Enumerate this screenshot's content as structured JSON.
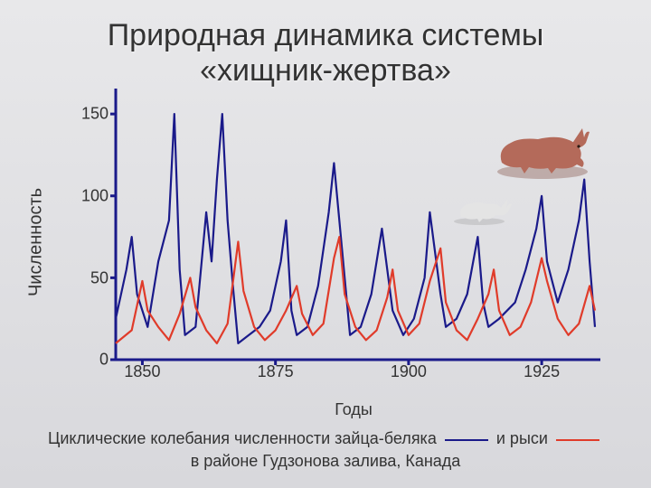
{
  "title_line1": "Природная динамика системы",
  "title_line2": "«хищник-жертва»",
  "ylabel": "Численность",
  "xlabel": "Годы",
  "background_gradient": [
    "#e8e8ea",
    "#d8d8dc"
  ],
  "chart": {
    "type": "line",
    "xlim": [
      1845,
      1935
    ],
    "ylim": [
      0,
      160
    ],
    "yticks": [
      0,
      50,
      100,
      150
    ],
    "xticks": [
      1850,
      1875,
      1900,
      1925
    ],
    "axis_color": "#1a1a8a",
    "axis_width": 3,
    "tick_len": 6,
    "prey": {
      "name": "заяц-беляк",
      "color": "#1a1a8a",
      "width": 2.2,
      "data": [
        [
          1845,
          25
        ],
        [
          1847,
          55
        ],
        [
          1848,
          75
        ],
        [
          1849,
          40
        ],
        [
          1851,
          20
        ],
        [
          1853,
          60
        ],
        [
          1855,
          85
        ],
        [
          1856,
          150
        ],
        [
          1857,
          55
        ],
        [
          1858,
          15
        ],
        [
          1860,
          20
        ],
        [
          1862,
          90
        ],
        [
          1863,
          60
        ],
        [
          1864,
          110
        ],
        [
          1865,
          150
        ],
        [
          1866,
          85
        ],
        [
          1867,
          45
        ],
        [
          1868,
          10
        ],
        [
          1870,
          15
        ],
        [
          1872,
          20
        ],
        [
          1874,
          30
        ],
        [
          1876,
          60
        ],
        [
          1877,
          85
        ],
        [
          1878,
          30
        ],
        [
          1879,
          15
        ],
        [
          1881,
          20
        ],
        [
          1883,
          45
        ],
        [
          1885,
          90
        ],
        [
          1886,
          120
        ],
        [
          1887,
          85
        ],
        [
          1888,
          50
        ],
        [
          1889,
          15
        ],
        [
          1891,
          20
        ],
        [
          1893,
          40
        ],
        [
          1895,
          80
        ],
        [
          1896,
          55
        ],
        [
          1897,
          30
        ],
        [
          1899,
          15
        ],
        [
          1901,
          25
        ],
        [
          1903,
          50
        ],
        [
          1904,
          90
        ],
        [
          1905,
          65
        ],
        [
          1906,
          40
        ],
        [
          1907,
          20
        ],
        [
          1909,
          25
        ],
        [
          1911,
          40
        ],
        [
          1913,
          75
        ],
        [
          1914,
          35
        ],
        [
          1915,
          20
        ],
        [
          1917,
          25
        ],
        [
          1920,
          35
        ],
        [
          1922,
          55
        ],
        [
          1924,
          80
        ],
        [
          1925,
          100
        ],
        [
          1926,
          60
        ],
        [
          1928,
          35
        ],
        [
          1930,
          55
        ],
        [
          1932,
          85
        ],
        [
          1933,
          110
        ],
        [
          1934,
          60
        ],
        [
          1935,
          20
        ]
      ]
    },
    "predator": {
      "name": "рысь",
      "color": "#e03b2a",
      "width": 2.2,
      "data": [
        [
          1845,
          10
        ],
        [
          1848,
          18
        ],
        [
          1850,
          48
        ],
        [
          1851,
          30
        ],
        [
          1853,
          20
        ],
        [
          1855,
          12
        ],
        [
          1857,
          28
        ],
        [
          1859,
          50
        ],
        [
          1860,
          32
        ],
        [
          1862,
          18
        ],
        [
          1864,
          10
        ],
        [
          1866,
          22
        ],
        [
          1868,
          72
        ],
        [
          1869,
          42
        ],
        [
          1871,
          20
        ],
        [
          1873,
          12
        ],
        [
          1875,
          18
        ],
        [
          1877,
          30
        ],
        [
          1879,
          45
        ],
        [
          1880,
          28
        ],
        [
          1882,
          15
        ],
        [
          1884,
          22
        ],
        [
          1886,
          62
        ],
        [
          1887,
          75
        ],
        [
          1888,
          40
        ],
        [
          1890,
          20
        ],
        [
          1892,
          12
        ],
        [
          1894,
          18
        ],
        [
          1896,
          38
        ],
        [
          1897,
          55
        ],
        [
          1898,
          30
        ],
        [
          1900,
          15
        ],
        [
          1902,
          22
        ],
        [
          1904,
          48
        ],
        [
          1906,
          68
        ],
        [
          1907,
          35
        ],
        [
          1909,
          18
        ],
        [
          1911,
          12
        ],
        [
          1913,
          25
        ],
        [
          1915,
          40
        ],
        [
          1916,
          55
        ],
        [
          1917,
          30
        ],
        [
          1919,
          15
        ],
        [
          1921,
          20
        ],
        [
          1923,
          35
        ],
        [
          1925,
          62
        ],
        [
          1926,
          48
        ],
        [
          1928,
          25
        ],
        [
          1930,
          15
        ],
        [
          1932,
          22
        ],
        [
          1934,
          45
        ],
        [
          1935,
          30
        ]
      ]
    }
  },
  "caption": {
    "pre": "Циклические колебания численности зайца-беляка",
    "mid": "и рыси",
    "post": "в районе Гудзонова залива, Канада"
  },
  "animals": {
    "lynx_fill": "#b46a5a",
    "lynx_shadow": "#7a4438",
    "hare_fill": "#d8d8d8"
  }
}
